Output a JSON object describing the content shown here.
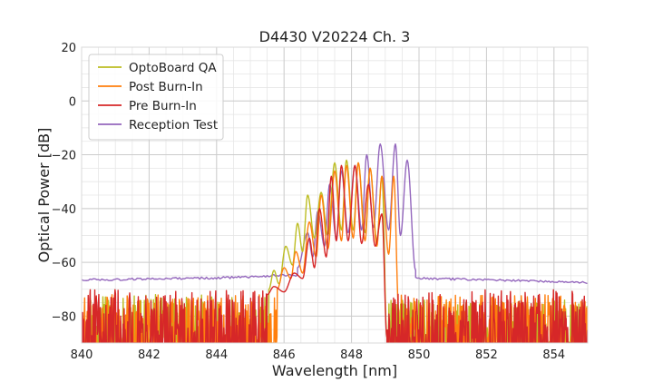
{
  "chart_data": {
    "type": "line",
    "title": "D4430 V20224 Ch. 3",
    "xlabel": "Wavelength [nm]",
    "ylabel": "Optical Power [dB]",
    "xlim": [
      840,
      855
    ],
    "ylim": [
      -90,
      20
    ],
    "xticks": [
      840,
      842,
      844,
      846,
      848,
      850,
      852,
      854
    ],
    "yticks": [
      -80,
      -60,
      -40,
      -20,
      0,
      20
    ],
    "x_minor_step": 0.5,
    "y_minor_step": 5,
    "grid": true,
    "legend_position": "top-left",
    "series": [
      {
        "name": "OptoBoard QA",
        "color": "#bcbd22",
        "noise_floor": {
          "range": [
            840,
            845.55
          ],
          "level_max": -72,
          "level_min": -90
        },
        "peaks": [
          [
            845.7,
            -63
          ],
          [
            846.05,
            -54
          ],
          [
            846.4,
            -45.5
          ],
          [
            846.7,
            -35
          ],
          [
            847.1,
            -34
          ],
          [
            847.5,
            -23
          ],
          [
            847.85,
            -22
          ],
          [
            848.2,
            -23
          ],
          [
            848.55,
            -25
          ],
          [
            848.9,
            -28
          ]
        ],
        "troughs": [
          [
            845.55,
            -70
          ],
          [
            845.85,
            -68
          ],
          [
            846.25,
            -61
          ],
          [
            846.55,
            -56
          ],
          [
            846.9,
            -51
          ],
          [
            847.3,
            -50
          ],
          [
            847.7,
            -48
          ],
          [
            848.05,
            -48
          ],
          [
            848.4,
            -49
          ],
          [
            848.75,
            -52
          ],
          [
            849.05,
            -88
          ]
        ],
        "noise_floor_after": {
          "range": [
            849.05,
            855
          ],
          "level_max": -74,
          "level_min": -90
        }
      },
      {
        "name": "Post Burn-In",
        "color": "#ff7f0e",
        "noise_floor": {
          "range": [
            840,
            845.8
          ],
          "level_max": -72,
          "level_min": -90
        },
        "peaks": [
          [
            846.0,
            -62
          ],
          [
            846.35,
            -56
          ],
          [
            846.75,
            -45
          ],
          [
            847.1,
            -35
          ],
          [
            847.5,
            -26
          ],
          [
            847.85,
            -24
          ],
          [
            848.2,
            -23
          ],
          [
            848.55,
            -25
          ],
          [
            848.9,
            -28
          ],
          [
            849.25,
            -28
          ]
        ],
        "troughs": [
          [
            845.8,
            -70
          ],
          [
            846.2,
            -66
          ],
          [
            846.55,
            -64
          ],
          [
            846.95,
            -58
          ],
          [
            847.3,
            -55
          ],
          [
            847.7,
            -52
          ],
          [
            848.05,
            -51
          ],
          [
            848.4,
            -52
          ],
          [
            848.75,
            -54
          ],
          [
            849.1,
            -57
          ],
          [
            849.4,
            -78
          ]
        ],
        "noise_floor_after": {
          "range": [
            849.4,
            855
          ],
          "level_max": -72,
          "level_min": -90
        }
      },
      {
        "name": "Pre Burn-In",
        "color": "#d62728",
        "noise_floor": {
          "range": [
            840,
            845.5
          ],
          "level_max": -70,
          "level_min": -90
        },
        "peaks": [
          [
            845.7,
            -69
          ],
          [
            846.3,
            -64
          ],
          [
            846.75,
            -51
          ],
          [
            847.05,
            -40
          ],
          [
            847.4,
            -28
          ],
          [
            847.7,
            -24
          ],
          [
            848.1,
            -24
          ],
          [
            848.5,
            -31
          ],
          [
            848.9,
            -42
          ]
        ],
        "troughs": [
          [
            845.5,
            -72
          ],
          [
            846.0,
            -71
          ],
          [
            846.55,
            -66
          ],
          [
            846.9,
            -62
          ],
          [
            847.25,
            -58
          ],
          [
            847.55,
            -52
          ],
          [
            847.9,
            -52
          ],
          [
            848.3,
            -53
          ],
          [
            848.7,
            -54
          ],
          [
            849.05,
            -88
          ]
        ],
        "noise_floor_after": {
          "range": [
            849.05,
            855
          ],
          "level_max": -70,
          "level_min": -90
        }
      },
      {
        "name": "Reception Test",
        "color": "#9467bd",
        "baseline": [
          [
            840,
            -66.5
          ],
          [
            842,
            -66.2
          ],
          [
            844,
            -65.8
          ],
          [
            845,
            -65.4
          ],
          [
            846,
            -64.8
          ],
          [
            852,
            -66.5
          ],
          [
            855,
            -67.5
          ]
        ],
        "peaks": [
          [
            846.7,
            -49
          ],
          [
            847.0,
            -41
          ],
          [
            847.35,
            -31
          ],
          [
            847.7,
            -26
          ],
          [
            848.1,
            -24
          ],
          [
            848.45,
            -20
          ],
          [
            848.85,
            -16
          ],
          [
            849.3,
            -16
          ],
          [
            849.65,
            -22
          ]
        ],
        "troughs": [
          [
            846.4,
            -62
          ],
          [
            846.85,
            -58
          ],
          [
            847.2,
            -54
          ],
          [
            847.55,
            -51
          ],
          [
            847.9,
            -49
          ],
          [
            848.3,
            -48
          ],
          [
            848.65,
            -47
          ],
          [
            849.1,
            -48
          ],
          [
            849.45,
            -50
          ],
          [
            849.9,
            -63
          ]
        ]
      }
    ]
  }
}
